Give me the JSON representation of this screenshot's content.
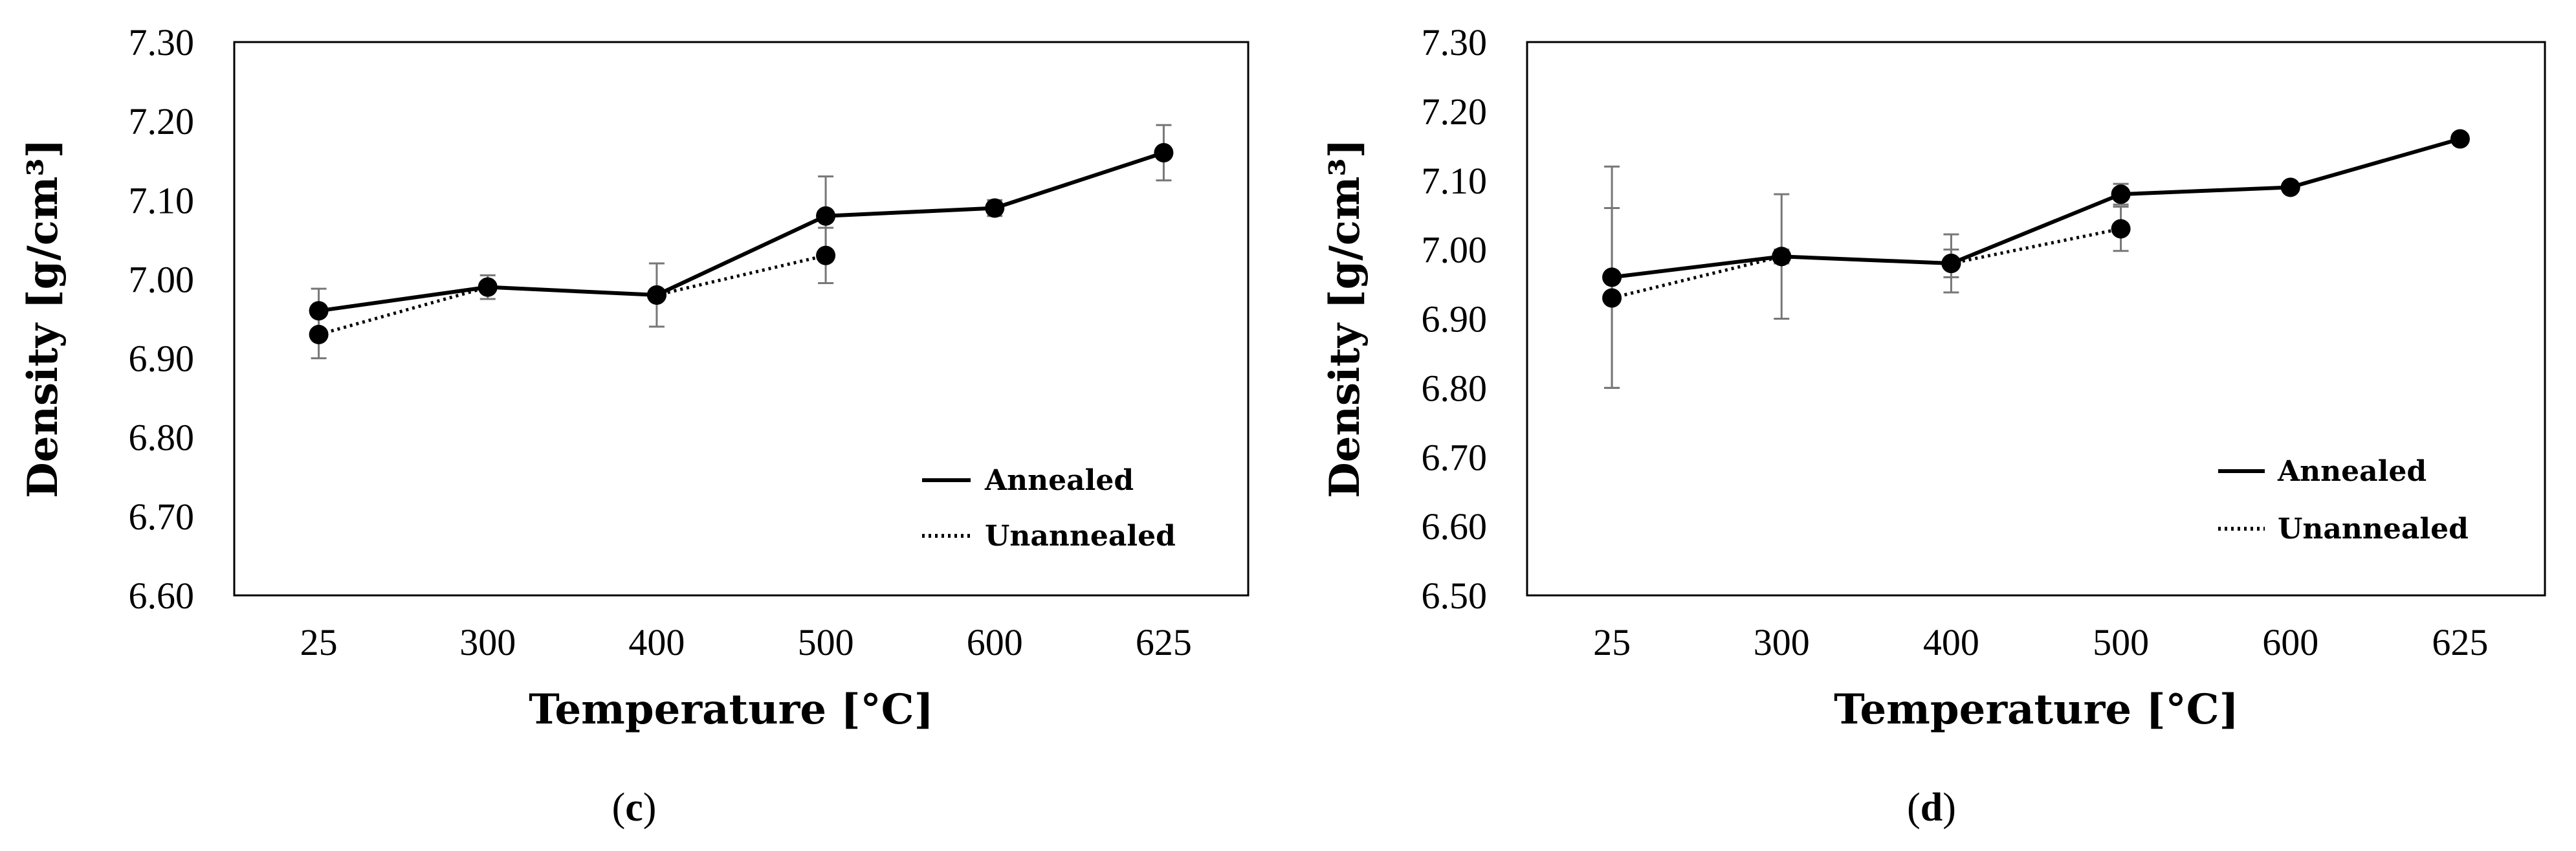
{
  "chart_data": [
    {
      "type": "line",
      "panel": "c",
      "caption_open": "(",
      "caption_letter": "c",
      "caption_close": ")",
      "categories": [
        "25",
        "300",
        "400",
        "500",
        "600",
        "625"
      ],
      "xlabel": "Temperature [°C]",
      "ylabel": "Density [g/cm³]",
      "ylim": [
        6.6,
        7.3
      ],
      "ytick_step": 0.1,
      "yticks": [
        "6.60",
        "6.70",
        "6.80",
        "6.90",
        "7.00",
        "7.10",
        "7.20",
        "7.30"
      ],
      "grid": false,
      "legend_position": "bottom-right",
      "series": [
        {
          "name": "Annealed",
          "style": "solid",
          "values": [
            6.96,
            6.99,
            6.98,
            7.08,
            7.09,
            7.16
          ],
          "errors": [
            0.028,
            0.015,
            0.04,
            0.05,
            0.01,
            0.035
          ]
        },
        {
          "name": "Unannealed",
          "style": "dotted",
          "values": [
            6.93,
            6.99,
            6.98,
            7.03,
            null,
            null
          ],
          "errors": [
            0.03,
            0.0,
            0.0,
            0.035,
            null,
            null
          ]
        }
      ]
    },
    {
      "type": "line",
      "panel": "d",
      "caption_open": "(",
      "caption_letter": "d",
      "caption_close": ")",
      "categories": [
        "25",
        "300",
        "400",
        "500",
        "600",
        "625"
      ],
      "xlabel": "Temperature [°C]",
      "ylabel": "Density [g/cm³]",
      "ylim": [
        6.5,
        7.3
      ],
      "ytick_step": 0.1,
      "yticks": [
        "6.50",
        "6.60",
        "6.70",
        "6.80",
        "6.90",
        "7.00",
        "7.10",
        "7.20",
        "7.30"
      ],
      "grid": false,
      "legend_position": "bottom-right",
      "series": [
        {
          "name": "Annealed",
          "style": "solid",
          "values": [
            6.96,
            6.99,
            6.98,
            7.08,
            7.09,
            7.16
          ],
          "errors": [
            0.16,
            0.09,
            0.02,
            0.015,
            0.005,
            0.0
          ]
        },
        {
          "name": "Unannealed",
          "style": "dotted",
          "values": [
            6.93,
            6.99,
            6.98,
            7.03,
            null,
            null
          ],
          "errors": [
            0.13,
            0.01,
            0.042,
            0.032,
            null,
            null
          ]
        }
      ]
    }
  ]
}
